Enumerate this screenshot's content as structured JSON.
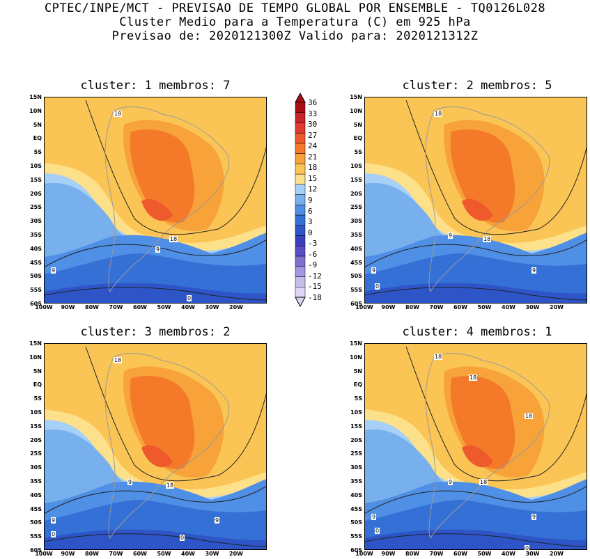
{
  "header": {
    "line1": "CPTEC/INPE/MCT - PREVISAO DE TEMPO GLOBAL POR ENSEMBLE - TQ0126L028",
    "line2": "Cluster Medio para a Temperatura (C) em 925 hPa",
    "line3": "Previsao de: 2020121300Z   Valido para: 2020121312Z"
  },
  "panels": [
    {
      "title": "cluster: 1   membros: 7",
      "contour_labels": [
        "18",
        "18",
        "9",
        "9",
        "0"
      ]
    },
    {
      "title": "cluster: 2   membros: 5",
      "contour_labels": [
        "18",
        "18",
        "9",
        "9",
        "9",
        "0"
      ]
    },
    {
      "title": "cluster: 3   membros: 2",
      "contour_labels": [
        "18",
        "18",
        "9",
        "9",
        "9",
        "0",
        "0"
      ]
    },
    {
      "title": "cluster: 4   membros: 1",
      "contour_labels": [
        "18",
        "18",
        "18",
        "18",
        "9",
        "9",
        "9",
        "0",
        "0"
      ]
    }
  ],
  "lat_labels": [
    "15N",
    "10N",
    "5N",
    "EQ",
    "5S",
    "10S",
    "15S",
    "20S",
    "25S",
    "30S",
    "35S",
    "40S",
    "45S",
    "50S",
    "55S",
    "60S"
  ],
  "lon_labels": [
    "100W",
    "90W",
    "80W",
    "70W",
    "60W",
    "50W",
    "40W",
    "30W",
    "20W"
  ],
  "colorbar": {
    "labels": [
      "36",
      "33",
      "30",
      "27",
      "24",
      "21",
      "18",
      "15",
      "12",
      "9",
      "6",
      "3",
      "0",
      "-3",
      "-6",
      "-9",
      "-12",
      "-15",
      "-18"
    ],
    "colors": [
      "#a50f15",
      "#c8252a",
      "#e03b30",
      "#ee5a2c",
      "#f47a2a",
      "#f7a33a",
      "#fbc556",
      "#fde08a",
      "#a6d0f5",
      "#78b0ee",
      "#4f8fe6",
      "#3570d6",
      "#2d55c8",
      "#3b3fbf",
      "#5a4ec4",
      "#7f70d2",
      "#a496e0",
      "#c6bcea",
      "#ddd5f3"
    ]
  }
}
